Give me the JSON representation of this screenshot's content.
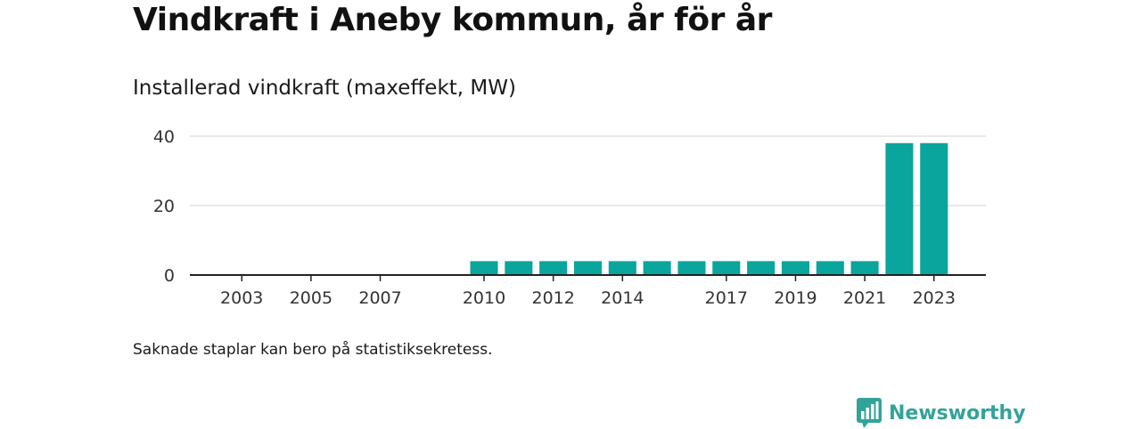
{
  "header": {
    "title": "Vindkraft i Aneby kommun, år för år",
    "subtitle": "Installerad vindkraft (maxeffekt, MW)"
  },
  "footer": {
    "note": "Saknade staplar kan bero på statistiksekretess.",
    "brand": "Newsworthy",
    "brand_icon": "bar-chart-speech-bubble-icon"
  },
  "colors": {
    "bar": "#0aa59c",
    "grid": "#d9d9d9",
    "axis": "#222222",
    "brand": "#33a39a"
  },
  "chart_data": {
    "type": "bar",
    "title": "Vindkraft i Aneby kommun, år för år",
    "subtitle": "Installerad vindkraft (maxeffekt, MW)",
    "xlabel": "",
    "ylabel": "",
    "x_range": [
      2002,
      2024
    ],
    "ylim": [
      0,
      40
    ],
    "yticks": [
      0,
      20,
      40
    ],
    "xticks": [
      2003,
      2005,
      2007,
      2010,
      2012,
      2014,
      2017,
      2019,
      2021,
      2023
    ],
    "grid": true,
    "legend": "none",
    "years": [
      2010,
      2011,
      2012,
      2013,
      2014,
      2015,
      2016,
      2017,
      2018,
      2019,
      2020,
      2021,
      2022,
      2023
    ],
    "values": [
      4,
      4,
      4,
      4,
      4,
      4,
      4,
      4,
      4,
      4,
      4,
      4,
      38,
      38
    ]
  }
}
